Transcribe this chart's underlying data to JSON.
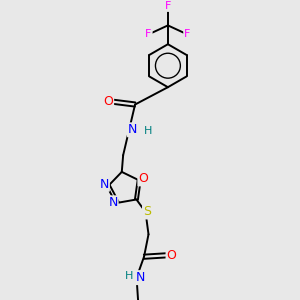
{
  "background_color": "#e8e8e8",
  "fig_size": [
    3.0,
    3.0
  ],
  "dpi": 100,
  "atom_colors": {
    "C": "#000000",
    "N": "#0000ff",
    "O": "#ff0000",
    "S": "#bbbb00",
    "F": "#ff00ff",
    "H": "#008080"
  },
  "bond_color": "#000000",
  "bond_width": 1.4
}
